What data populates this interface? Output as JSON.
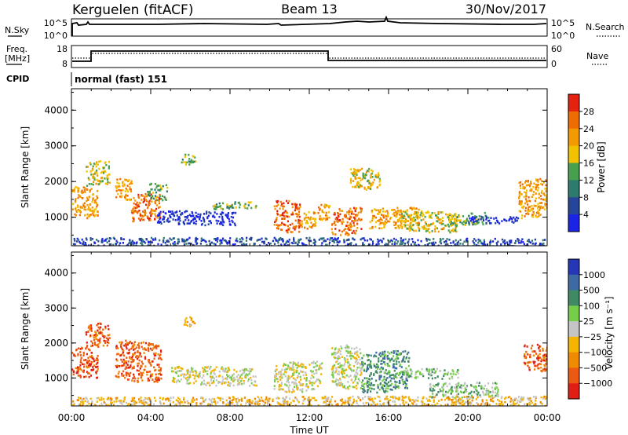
{
  "header": {
    "station": "Kerguelen (fitACF)",
    "beam": "Beam 13",
    "date": "30/Nov/2017"
  },
  "nsky_panel": {
    "left_label": "N.Sky",
    "left_ticks": [
      "10^5",
      "10^0"
    ],
    "right_ticks": [
      "10^5",
      "10^0"
    ],
    "right_label": "N.Search"
  },
  "freq_panel": {
    "left_label_1": "Freq.",
    "left_label_2": "[MHz]",
    "left_ticks": [
      "18",
      "8"
    ],
    "right_ticks": [
      "60",
      "0"
    ],
    "right_label": "Nave"
  },
  "cpid": {
    "label": "CPID",
    "value": "normal (fast) 151"
  },
  "time_axis": {
    "label": "Time UT",
    "ticks": [
      "00:00",
      "04:00",
      "08:00",
      "12:00",
      "16:00",
      "20:00",
      "00:00"
    ]
  },
  "chart_data": [
    {
      "type": "heatmap",
      "panel": "power",
      "ylabel": "Slant Range [km]",
      "yticks": [
        "1000",
        "2000",
        "3000",
        "4000"
      ],
      "ylim": [
        200,
        4600
      ],
      "xlim_hours": [
        0,
        24
      ],
      "colorbar_label": "Power [dB]",
      "colorbar_ticks": [
        "4",
        "8",
        "12",
        "16",
        "20",
        "24",
        "28"
      ],
      "colors": [
        "#1a23e6",
        "#26469c",
        "#2f7a6e",
        "#47a04e",
        "#f2c200",
        "#f39a00",
        "#ef6c00",
        "#e52210"
      ],
      "echo_regions": [
        {
          "t0": 0.0,
          "t1": 1.3,
          "r0": 1000,
          "r1": 1900,
          "level": 5
        },
        {
          "t0": 0.7,
          "t1": 1.9,
          "r0": 1900,
          "r1": 2600,
          "level": 4
        },
        {
          "t0": 2.2,
          "t1": 3.1,
          "r0": 1500,
          "r1": 2100,
          "level": 5
        },
        {
          "t0": 3.0,
          "t1": 4.5,
          "r0": 900,
          "r1": 1700,
          "level": 6
        },
        {
          "t0": 3.8,
          "t1": 4.8,
          "r0": 1500,
          "r1": 2000,
          "level": 3
        },
        {
          "t0": 5.5,
          "t1": 6.3,
          "r0": 2500,
          "r1": 2800,
          "level": 3
        },
        {
          "t0": 4.3,
          "t1": 8.3,
          "r0": 800,
          "r1": 1200,
          "level": 0
        },
        {
          "t0": 7.0,
          "t1": 9.3,
          "r0": 1250,
          "r1": 1450,
          "level": 3
        },
        {
          "t0": 10.2,
          "t1": 11.5,
          "r0": 600,
          "r1": 1500,
          "level": 6
        },
        {
          "t0": 11.5,
          "t1": 12.3,
          "r0": 700,
          "r1": 1200,
          "level": 5
        },
        {
          "t0": 12.4,
          "t1": 13.0,
          "r0": 900,
          "r1": 1400,
          "level": 5
        },
        {
          "t0": 13.1,
          "t1": 14.6,
          "r0": 500,
          "r1": 1300,
          "level": 6
        },
        {
          "t0": 14.0,
          "t1": 15.6,
          "r0": 1800,
          "r1": 2400,
          "level": 4
        },
        {
          "t0": 15.0,
          "t1": 17.5,
          "r0": 700,
          "r1": 1300,
          "level": 5
        },
        {
          "t0": 16.5,
          "t1": 19.5,
          "r0": 600,
          "r1": 1200,
          "level": 4
        },
        {
          "t0": 19.0,
          "t1": 21.0,
          "r0": 800,
          "r1": 1150,
          "level": 3
        },
        {
          "t0": 20.0,
          "t1": 22.5,
          "r0": 850,
          "r1": 1050,
          "level": 0
        },
        {
          "t0": 22.5,
          "t1": 24.0,
          "r0": 1000,
          "r1": 2100,
          "level": 5
        },
        {
          "t0": 0.0,
          "t1": 24.0,
          "r0": 200,
          "r1": 450,
          "level": 1
        }
      ]
    },
    {
      "type": "heatmap",
      "panel": "velocity",
      "ylabel": "Slant Range [km]",
      "yticks": [
        "1000",
        "2000",
        "3000",
        "4000"
      ],
      "ylim": [
        200,
        4600
      ],
      "xlim_hours": [
        0,
        24
      ],
      "colorbar_label": "Velocity [m s⁻¹]",
      "colorbar_ticks": [
        "1000",
        "500",
        "100",
        "25",
        "−25",
        "−100",
        "−500",
        "−1000"
      ],
      "colors": [
        "#2536b7",
        "#3e6aa3",
        "#3f8a62",
        "#77cc4a",
        "#c5c5c5",
        "#f4b400",
        "#f08a00",
        "#ec5a12",
        "#e01e16"
      ],
      "echo_regions": [
        {
          "t0": 0.0,
          "t1": 1.3,
          "r0": 1000,
          "r1": 1900,
          "level": 7
        },
        {
          "t0": 0.7,
          "t1": 1.9,
          "r0": 1900,
          "r1": 2600,
          "level": 7
        },
        {
          "t0": 2.2,
          "t1": 4.5,
          "r0": 900,
          "r1": 2100,
          "level": 7
        },
        {
          "t0": 5.6,
          "t1": 6.2,
          "r0": 2500,
          "r1": 2800,
          "level": 5
        },
        {
          "t0": 5.0,
          "t1": 9.3,
          "r0": 800,
          "r1": 1350,
          "level": 4
        },
        {
          "t0": 10.2,
          "t1": 12.6,
          "r0": 600,
          "r1": 1500,
          "level": 4
        },
        {
          "t0": 13.1,
          "t1": 14.6,
          "r0": 700,
          "r1": 2000,
          "level": 4
        },
        {
          "t0": 14.6,
          "t1": 17.0,
          "r0": 600,
          "r1": 1800,
          "level": 2
        },
        {
          "t0": 16.5,
          "t1": 19.5,
          "r0": 1000,
          "r1": 1300,
          "level": 3
        },
        {
          "t0": 18.0,
          "t1": 21.5,
          "r0": 450,
          "r1": 900,
          "level": 3
        },
        {
          "t0": 22.8,
          "t1": 24.0,
          "r0": 1200,
          "r1": 2000,
          "level": 7
        },
        {
          "t0": 0.0,
          "t1": 24.0,
          "r0": 200,
          "r1": 500,
          "level": 5
        }
      ]
    }
  ]
}
